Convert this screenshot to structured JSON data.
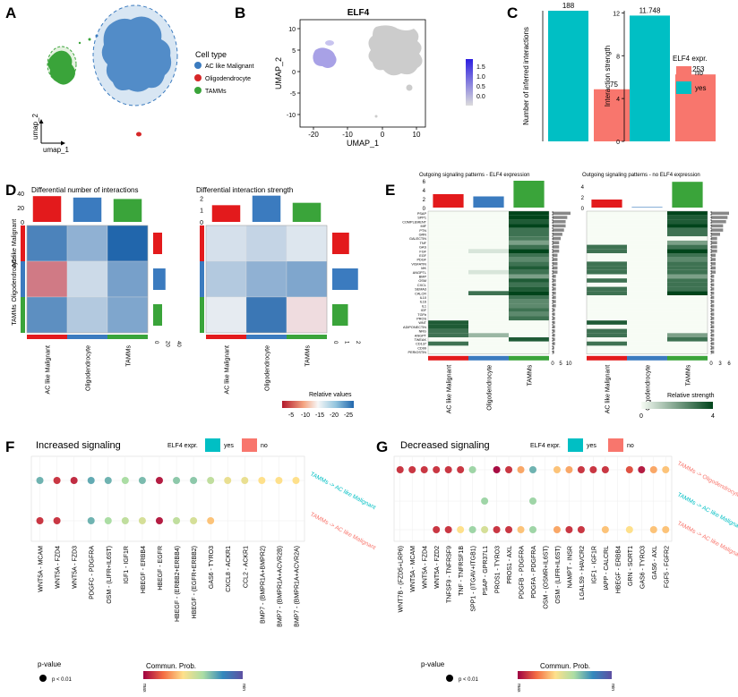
{
  "panels": {
    "A": {
      "letter": "A",
      "legend_title": "Cell type",
      "legend": [
        {
          "label": "AC like Malignant",
          "color": "#3b7bbf"
        },
        {
          "label": "Oligodendrocyte",
          "color": "#d62728"
        },
        {
          "label": "TAMMs",
          "color": "#3aa43a"
        }
      ],
      "axis_x": "umap_1",
      "axis_y": "umap_2"
    },
    "B": {
      "letter": "B",
      "title": "ELF4",
      "xlabel": "UMAP_1",
      "ylabel": "UMAP_2",
      "xticks": [
        "-20",
        "-10",
        "0",
        "10"
      ],
      "yticks": [
        "10",
        "5",
        "0",
        "-5",
        "-10"
      ],
      "colorbar_ticks": [
        "1.5",
        "1.0",
        "0.5",
        "0.0"
      ]
    },
    "C": {
      "letter": "C",
      "legend_title": "ELF4 expr.",
      "legend": [
        {
          "label": "no",
          "color": "#f8766d"
        },
        {
          "label": "yes",
          "color": "#00bfc4"
        }
      ]
    },
    "D": {
      "letter": "D",
      "title_left": "Differential number of interactions",
      "title_right": "Differential interaction strength",
      "rows": [
        "AC like Malignant",
        "Oligodendrocyte",
        "TAMMs"
      ],
      "cols": [
        "AC like Malignant",
        "Oligodendrocyte",
        "TAMMs"
      ],
      "left_top_ticks": [
        "40",
        "20",
        "0"
      ],
      "left_side_ticks": [
        "0",
        "20",
        "40"
      ],
      "right_top_ticks": [
        "2",
        "1",
        "0"
      ],
      "right_side_ticks": [
        "0",
        "1",
        "2"
      ],
      "scale_title": "Relative values",
      "scale_ticks": [
        "-5",
        "-10",
        "-15",
        "-20",
        "-25"
      ]
    },
    "E": {
      "letter": "E",
      "title_left": "Outgoing signaling patterns - ELF4 expression",
      "title_right": "Outgoing signaling patterns - no ELF4 expression",
      "left_top_ticks": [
        "6",
        "4",
        "2",
        "0"
      ],
      "right_top_ticks": [
        "4",
        "2",
        "0"
      ],
      "cols": [
        "AC like Malignant",
        "Oligodendrocyte",
        "TAMMs"
      ],
      "pathways": [
        "PSAP",
        "SPP1",
        "COMPLEMENT",
        "MIF",
        "PTN",
        "GRN",
        "GALECTIN",
        "TNF",
        "GAS",
        "FGF",
        "EGF",
        "PDGF",
        "VISFATIN",
        "MK",
        "ANGPTL",
        "BMP",
        "OSM",
        "CXCL",
        "SEMA3",
        "CALCR",
        "IL10",
        "IL16",
        "IL1",
        "IGF",
        "TGFb",
        "PROS",
        "WNT",
        "ADIPONECTIN",
        "NRG",
        "ANGPT",
        "TWEAK",
        "CD137",
        "CD99",
        "PERIOSTIN"
      ],
      "left_side_ticks": [
        "0",
        "5",
        "10"
      ],
      "right_side_ticks": [
        "0",
        "3",
        "6"
      ],
      "scale_title": "Relative strength",
      "scale_ticks": [
        "0",
        "4"
      ]
    },
    "F": {
      "letter": "F",
      "title": "Increased signaling",
      "legend_title": "ELF4 expr.",
      "legend_yes": "yes",
      "legend_no": "no",
      "rows": [
        "TAMMs -> AC like Malignant",
        "TAMMs -> AC like Malignant"
      ],
      "pairs": [
        "WNT5A - MCAM",
        "WNT5A - FZD4",
        "WNT5A - FZD3",
        "PDGFC - PDGFRA",
        "OSM - (LIFR+IL6ST)",
        "IGF1 - IGF1R",
        "HBEGF - ERBB4",
        "HBEGF - EGFR",
        "HBEGF - (ERBB2+ERBB4)",
        "HBEGF - (EGFR+ERBB2)",
        "GAS6 - TYRO3",
        "CXCL8 - ACKR1",
        "CCL2 - ACKR1",
        "BMP7 - (BMPR1A+BMPR2)",
        "BMP7 - (BMPR1A+ACVR2B)",
        "BMP7 - (BMPR1A+ACVR2A)"
      ],
      "pvalue_title": "p-value",
      "pvalue_label": "p < 0.01",
      "prob_title": "Commun. Prob.",
      "prob_max": "max",
      "prob_min": "min"
    },
    "G": {
      "letter": "G",
      "title": "Decreased signaling",
      "legend_title": "ELF4 expr.",
      "legend_yes": "yes",
      "legend_no": "no",
      "rows": [
        "TAMMs -> Oligodendrocyte",
        "TAMMs -> AC like Malignant",
        "TAMMs -> AC like Malignant"
      ],
      "pairs": [
        "WNT7B - (FZD5+LRP6)",
        "WNT5A - MCAM",
        "WNT5A - FZD4",
        "WNT5A - FZD2",
        "TNFSF9 - TNFRSF9",
        "TNF - TNFRSF1B",
        "SPP1 - (ITGAV+ITGB1)",
        "PSAP - GPR37L1",
        "PROS1 - TYRO3",
        "PROS1 - AXL",
        "PDGFB - PDGFRA",
        "PDGFA - PDGFRA",
        "OSM - (OSMR+IL6ST)",
        "OSM - (LIFR+IL6ST)",
        "NAMPT - INSR",
        "LGALS9 - HAVCR2",
        "IGF1 - IGF1R",
        "IAPP - CALCRL",
        "HBEGF - ERBB4",
        "GRN - SORT1",
        "GAS6 - TYRO3",
        "GAS6 - AXL",
        "FGF5 - FGFR2"
      ],
      "pvalue_title": "p-value",
      "pvalue_label": "p < 0.01",
      "prob_title": "Commun. Prob.",
      "prob_max": "max",
      "prob_min": "min"
    }
  },
  "chart_data": [
    {
      "type": "bar",
      "title": "Number of inferred interactions",
      "ylabel": "Number of inferred interactions",
      "categories": [
        "yes",
        "no"
      ],
      "values": [
        188,
        75
      ],
      "value_labels": [
        "188",
        "75"
      ],
      "colors": [
        "#00bfc4",
        "#f8766d"
      ],
      "ylim": [
        0,
        188
      ]
    },
    {
      "type": "bar",
      "title": "Interaction strength",
      "ylabel": "Interaction strength",
      "categories": [
        "yes",
        "no"
      ],
      "values": [
        11.748,
        6.253
      ],
      "value_labels": [
        "11.748",
        "6.253"
      ],
      "yticks": [
        "0",
        "4",
        "8",
        "12"
      ],
      "colors": [
        "#00bfc4",
        "#f8766d"
      ],
      "ylim": [
        0,
        12.2
      ]
    },
    {
      "type": "heatmap",
      "title": "Differential number of interactions",
      "rows": [
        "AC like Malignant",
        "Oligodendrocyte",
        "TAMMs"
      ],
      "cols": [
        "AC like Malignant",
        "Oligodendrocyte",
        "TAMMs"
      ],
      "values": [
        [
          -20,
          -12,
          -26
        ],
        [
          14,
          -5,
          -15
        ],
        [
          -18,
          -8,
          -14
        ]
      ],
      "col_sums": [
        36,
        34,
        32
      ],
      "row_sums": [
        16,
        22,
        16
      ]
    },
    {
      "type": "heatmap",
      "title": "Differential interaction strength",
      "rows": [
        "AC like Malignant",
        "Oligodendrocyte",
        "TAMMs"
      ],
      "cols": [
        "AC like Malignant",
        "Oligodendrocyte",
        "TAMMs"
      ],
      "values": [
        [
          -4,
          -6,
          -3
        ],
        [
          -8,
          -12,
          -14
        ],
        [
          -2,
          -22,
          3
        ]
      ],
      "col_sums": [
        1.4,
        2.2,
        1.6
      ],
      "row_sums": [
        1.5,
        2.3,
        1.4
      ]
    },
    {
      "type": "heatmap",
      "title": "Outgoing signaling patterns - ELF4 expression",
      "col_sums": [
        3.0,
        2.5,
        6.0
      ],
      "values": [
        [
          0,
          0,
          4
        ],
        [
          0,
          0,
          4
        ],
        [
          0,
          0,
          3.5
        ],
        [
          0,
          0,
          4
        ],
        [
          0,
          0,
          3
        ],
        [
          0,
          0,
          3
        ],
        [
          0,
          0,
          2.8
        ],
        [
          0,
          0,
          2
        ],
        [
          0,
          0,
          3
        ],
        [
          0,
          0.5,
          4
        ],
        [
          0,
          0,
          3
        ],
        [
          0,
          0,
          2.5
        ],
        [
          0,
          0,
          3
        ],
        [
          0,
          0,
          3.5
        ],
        [
          0,
          0.5,
          3
        ],
        [
          0,
          0,
          2
        ],
        [
          0,
          0,
          3.5
        ],
        [
          0,
          0,
          3
        ],
        [
          0,
          0,
          3.5
        ],
        [
          0,
          3,
          4
        ],
        [
          0,
          0,
          3
        ],
        [
          0,
          0,
          2.5
        ],
        [
          0,
          0,
          2.5
        ],
        [
          0,
          0,
          3
        ],
        [
          0,
          0,
          2.5
        ],
        [
          0,
          0,
          3
        ],
        [
          3.5,
          0,
          0
        ],
        [
          3.5,
          0,
          0
        ],
        [
          3,
          0,
          0
        ],
        [
          3,
          1.5,
          0
        ],
        [
          0,
          0,
          3.5
        ],
        [
          3,
          0,
          0
        ],
        [
          0,
          0,
          0
        ],
        [
          0,
          0,
          0
        ]
      ],
      "row_sums": [
        11,
        9,
        8,
        8,
        7,
        6,
        5,
        4,
        4,
        4,
        3,
        3,
        3,
        3,
        3,
        2,
        2,
        2,
        2,
        2,
        2,
        2,
        2,
        1.5,
        1.5,
        1.5,
        1.5,
        1.5,
        1.5,
        1.5,
        1.5,
        1.5,
        1,
        1
      ]
    },
    {
      "type": "heatmap",
      "title": "Outgoing signaling patterns - no ELF4 expression",
      "col_sums": [
        1.5,
        0.1,
        4.8
      ],
      "values": [
        [
          0,
          0,
          4
        ],
        [
          0,
          0,
          3.5
        ],
        [
          0,
          0,
          3.5
        ],
        [
          0,
          0,
          4
        ],
        [
          0,
          0,
          3
        ],
        [
          0,
          0,
          3
        ],
        [
          0,
          0,
          0
        ],
        [
          0,
          0,
          2
        ],
        [
          3,
          0,
          3
        ],
        [
          3,
          0,
          4
        ],
        [
          0,
          0,
          3
        ],
        [
          0,
          0,
          2.5
        ],
        [
          3,
          0,
          3
        ],
        [
          3,
          0,
          3
        ],
        [
          3,
          0,
          3
        ],
        [
          0,
          0,
          2
        ],
        [
          3,
          0,
          3
        ],
        [
          0,
          0,
          3
        ],
        [
          3,
          0,
          3
        ],
        [
          3,
          0,
          4
        ],
        [
          0,
          0,
          0
        ],
        [
          0,
          0,
          0
        ],
        [
          0,
          0,
          0
        ],
        [
          0,
          0,
          0
        ],
        [
          0,
          0,
          0
        ],
        [
          0,
          0,
          0
        ],
        [
          3.5,
          0,
          0
        ],
        [
          0,
          0,
          0
        ],
        [
          3,
          0,
          0
        ],
        [
          3,
          0,
          2
        ],
        [
          0,
          0,
          3
        ],
        [
          3,
          0,
          0
        ],
        [
          0,
          0,
          0
        ],
        [
          0,
          0,
          0
        ]
      ],
      "row_sums": [
        6,
        5.5,
        5,
        4,
        4,
        3,
        2,
        2,
        2,
        2,
        1.5,
        1.5,
        1.5,
        1.5,
        1.5,
        1,
        1,
        1,
        1,
        1,
        1,
        1,
        1,
        1,
        1,
        1,
        1,
        1,
        1,
        1,
        1,
        1,
        1,
        1
      ]
    },
    {
      "type": "scatter",
      "title": "Increased signaling",
      "dots": [
        {
          "row": 0,
          "col": 0,
          "p": 0.7
        },
        {
          "row": 0,
          "col": 1,
          "p": 0.1
        },
        {
          "row": 0,
          "col": 2,
          "p": 0.08
        },
        {
          "row": 0,
          "col": 3,
          "p": 0.72
        },
        {
          "row": 0,
          "col": 4,
          "p": 0.7
        },
        {
          "row": 0,
          "col": 5,
          "p": 0.6
        },
        {
          "row": 0,
          "col": 6,
          "p": 0.68
        },
        {
          "row": 0,
          "col": 7,
          "p": 0.05
        },
        {
          "row": 0,
          "col": 8,
          "p": 0.65
        },
        {
          "row": 0,
          "col": 9,
          "p": 0.65
        },
        {
          "row": 0,
          "col": 10,
          "p": 0.55
        },
        {
          "row": 0,
          "col": 11,
          "p": 0.45
        },
        {
          "row": 0,
          "col": 12,
          "p": 0.45
        },
        {
          "row": 0,
          "col": 13,
          "p": 0.4
        },
        {
          "row": 0,
          "col": 14,
          "p": 0.4
        },
        {
          "row": 0,
          "col": 15,
          "p": 0.4
        },
        {
          "row": 1,
          "col": 0,
          "p": 0.1
        },
        {
          "row": 1,
          "col": 1,
          "p": 0.1
        },
        {
          "row": 1,
          "col": 3,
          "p": 0.7
        },
        {
          "row": 1,
          "col": 4,
          "p": 0.6
        },
        {
          "row": 1,
          "col": 5,
          "p": 0.55
        },
        {
          "row": 1,
          "col": 6,
          "p": 0.5
        },
        {
          "row": 1,
          "col": 7,
          "p": 0.05
        },
        {
          "row": 1,
          "col": 8,
          "p": 0.55
        },
        {
          "row": 1,
          "col": 9,
          "p": 0.5
        },
        {
          "row": 1,
          "col": 10,
          "p": 0.35
        }
      ]
    },
    {
      "type": "scatter",
      "title": "Decreased signaling",
      "dots": [
        {
          "row": 0,
          "col": 0,
          "p": 0.1
        },
        {
          "row": 0,
          "col": 1,
          "p": 0.1
        },
        {
          "row": 0,
          "col": 2,
          "p": 0.1
        },
        {
          "row": 0,
          "col": 3,
          "p": 0.1
        },
        {
          "row": 0,
          "col": 4,
          "p": 0.1
        },
        {
          "row": 0,
          "col": 5,
          "p": 0.1
        },
        {
          "row": 0,
          "col": 6,
          "p": 0.62
        },
        {
          "row": 0,
          "col": 8,
          "p": 0.02
        },
        {
          "row": 0,
          "col": 9,
          "p": 0.1
        },
        {
          "row": 0,
          "col": 10,
          "p": 0.3
        },
        {
          "row": 0,
          "col": 11,
          "p": 0.7
        },
        {
          "row": 0,
          "col": 13,
          "p": 0.35
        },
        {
          "row": 0,
          "col": 14,
          "p": 0.3
        },
        {
          "row": 0,
          "col": 15,
          "p": 0.1
        },
        {
          "row": 0,
          "col": 16,
          "p": 0.1
        },
        {
          "row": 0,
          "col": 17,
          "p": 0.1
        },
        {
          "row": 0,
          "col": 19,
          "p": 0.15
        },
        {
          "row": 0,
          "col": 20,
          "p": 0.05
        },
        {
          "row": 0,
          "col": 21,
          "p": 0.3
        },
        {
          "row": 0,
          "col": 22,
          "p": 0.35
        },
        {
          "row": 1,
          "col": 7,
          "p": 0.62
        },
        {
          "row": 1,
          "col": 11,
          "p": 0.62
        },
        {
          "row": 2,
          "col": 3,
          "p": 0.1
        },
        {
          "row": 2,
          "col": 4,
          "p": 0.1
        },
        {
          "row": 2,
          "col": 5,
          "p": 0.4
        },
        {
          "row": 2,
          "col": 6,
          "p": 0.62
        },
        {
          "row": 2,
          "col": 7,
          "p": 0.5
        },
        {
          "row": 2,
          "col": 8,
          "p": 0.1
        },
        {
          "row": 2,
          "col": 9,
          "p": 0.1
        },
        {
          "row": 2,
          "col": 10,
          "p": 0.35
        },
        {
          "row": 2,
          "col": 11,
          "p": 0.62
        },
        {
          "row": 2,
          "col": 13,
          "p": 0.3
        },
        {
          "row": 2,
          "col": 14,
          "p": 0.1
        },
        {
          "row": 2,
          "col": 15,
          "p": 0.1
        },
        {
          "row": 2,
          "col": 17,
          "p": 0.35
        },
        {
          "row": 2,
          "col": 19,
          "p": 0.4
        },
        {
          "row": 2,
          "col": 21,
          "p": 0.35
        },
        {
          "row": 2,
          "col": 22,
          "p": 0.35
        }
      ]
    }
  ]
}
